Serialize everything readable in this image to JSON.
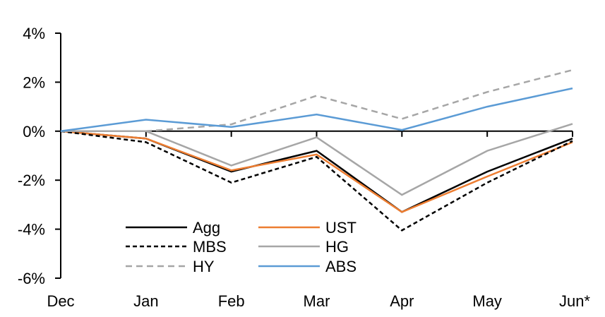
{
  "chart_data": {
    "type": "line",
    "title": "",
    "xlabel": "",
    "ylabel": "",
    "categories": [
      "Dec",
      "Jan",
      "Feb",
      "Mar",
      "Apr",
      "May",
      "Jun*"
    ],
    "ylim": [
      -6,
      4
    ],
    "yticks": [
      4,
      2,
      0,
      -2,
      -4,
      -6
    ],
    "ytick_labels": [
      "4%",
      "2%",
      "0%",
      "-2%",
      "-4%",
      "-6%"
    ],
    "grid": false,
    "legend_position": "bottom-left",
    "series": [
      {
        "name": "Agg",
        "color": "#000000",
        "dash": "solid",
        "values": [
          0,
          -0.3,
          -1.65,
          -0.8,
          -3.3,
          -1.65,
          -0.3
        ]
      },
      {
        "name": "UST",
        "color": "#ED7D31",
        "dash": "solid",
        "values": [
          0,
          -0.3,
          -1.6,
          -0.95,
          -3.3,
          -1.85,
          -0.45
        ]
      },
      {
        "name": "MBS",
        "color": "#000000",
        "dash": "dashed",
        "values": [
          0,
          -0.45,
          -2.1,
          -1.05,
          -4.05,
          -2.1,
          -0.4
        ]
      },
      {
        "name": "HG",
        "color": "#A6A6A6",
        "dash": "solid",
        "values": [
          0,
          0.0,
          -1.4,
          -0.25,
          -2.6,
          -0.8,
          0.3
        ]
      },
      {
        "name": "HY",
        "color": "#A6A6A6",
        "dash": "dashed",
        "values": [
          0,
          0.0,
          0.28,
          1.45,
          0.5,
          1.6,
          2.5
        ]
      },
      {
        "name": "ABS",
        "color": "#5B9BD5",
        "dash": "solid",
        "values": [
          0,
          0.47,
          0.17,
          0.68,
          0.05,
          1.0,
          1.75
        ]
      }
    ]
  }
}
